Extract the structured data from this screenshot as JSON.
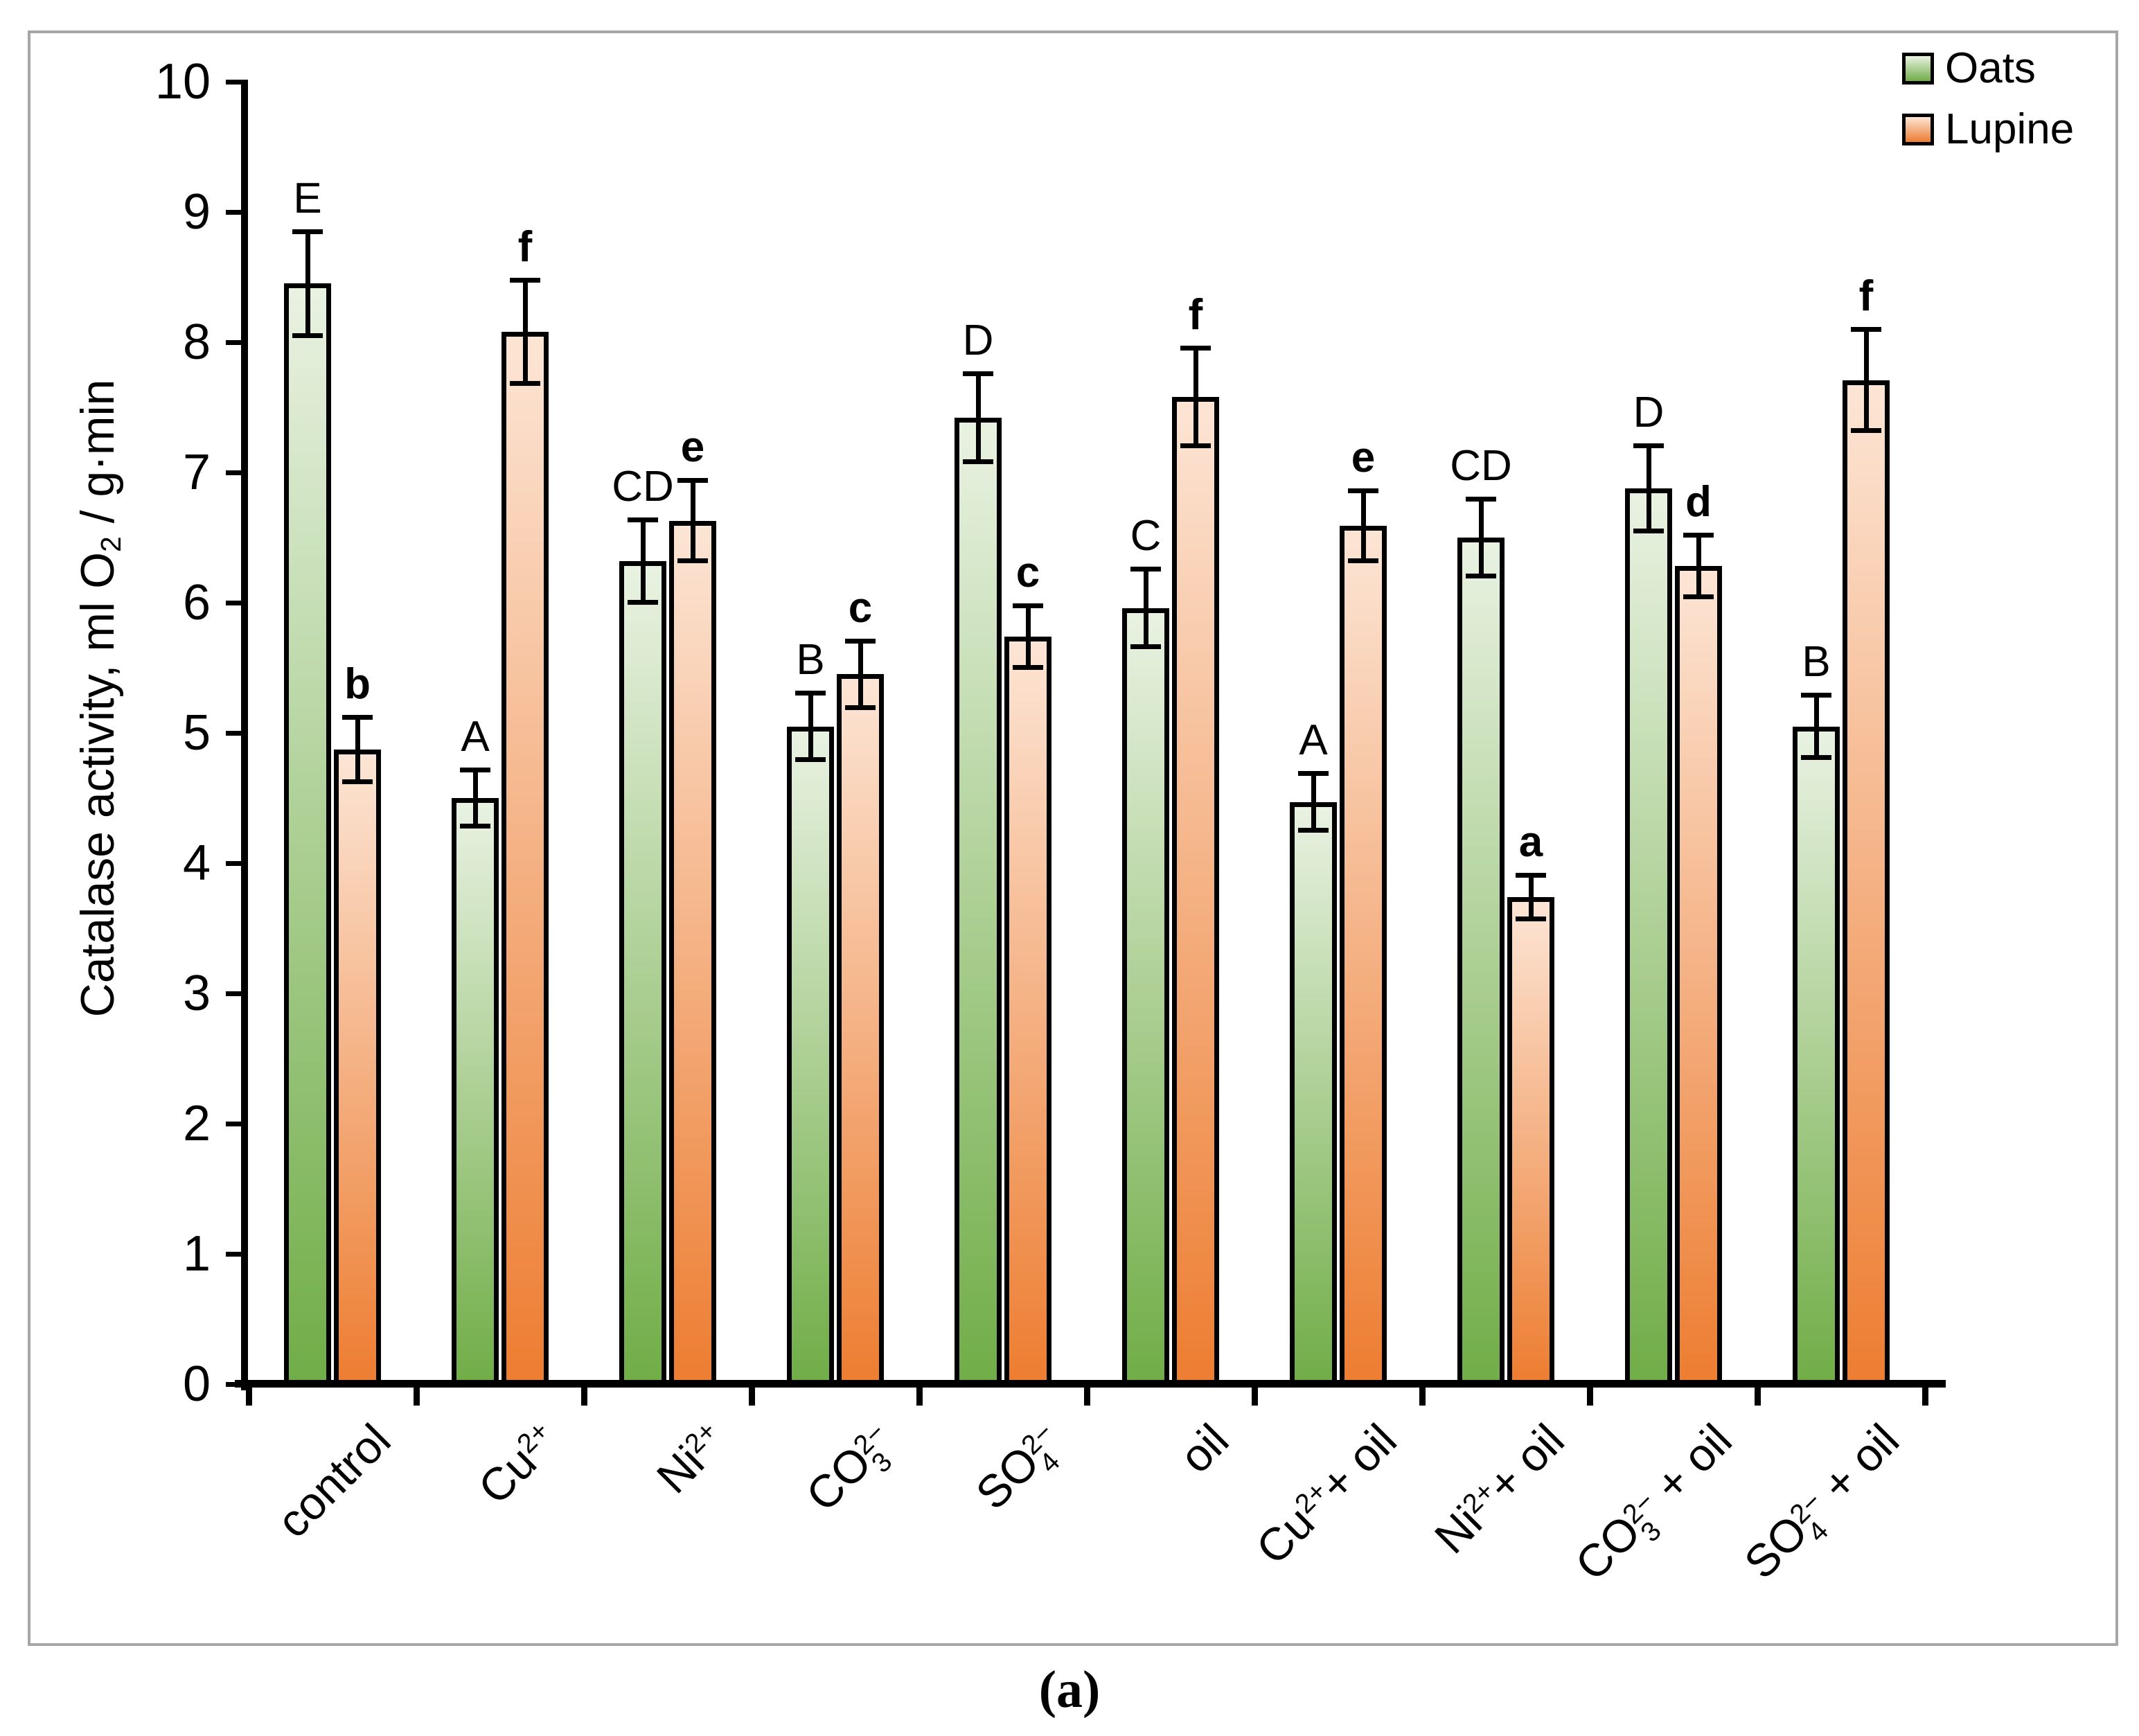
{
  "figure": {
    "frame_color": "#a6a6a6",
    "background": "#ffffff",
    "axis_color": "#000000"
  },
  "chart_data": {
    "type": "bar",
    "title": "",
    "ylabel_plain": "Catalase activity, ml O2 / g·min",
    "ylabel_segments": [
      {
        "t": "Catalase activity,  ml O"
      },
      {
        "t": "2",
        "v": "sub"
      },
      {
        "t": " / g·min"
      }
    ],
    "xlabel": "",
    "ylim": [
      0,
      10
    ],
    "yticks": [
      0,
      1,
      2,
      3,
      4,
      5,
      6,
      7,
      8,
      9,
      10
    ],
    "grid": false,
    "legend_position": "top-right",
    "caption": "(a)",
    "categories_plain": [
      "control",
      "Cu²⁺",
      "Ni²⁺",
      "CO₃²⁻",
      "SO₄²⁻",
      "oil",
      "Cu²⁺+ oil",
      "Ni²⁺+ oil",
      "CO₃²⁻ + oil",
      "SO₄²⁻ + oil"
    ],
    "categories": [
      [
        {
          "t": "control"
        }
      ],
      [
        {
          "t": "Cu"
        },
        {
          "t": "2+",
          "v": "sup"
        }
      ],
      [
        {
          "t": "Ni"
        },
        {
          "t": "2+",
          "v": "sup"
        }
      ],
      [
        {
          "t": "CO"
        },
        {
          "stack": {
            "sup": "2−",
            "sub": "3"
          }
        }
      ],
      [
        {
          "t": "SO"
        },
        {
          "stack": {
            "sup": "2−",
            "sub": "4"
          }
        }
      ],
      [
        {
          "t": "oil"
        }
      ],
      [
        {
          "t": "Cu"
        },
        {
          "t": "2+",
          "v": "sup"
        },
        {
          "t": "+ oil"
        }
      ],
      [
        {
          "t": "Ni"
        },
        {
          "t": "2+",
          "v": "sup"
        },
        {
          "t": "+ oil"
        }
      ],
      [
        {
          "t": "CO"
        },
        {
          "stack": {
            "sup": "2−",
            "sub": "3"
          }
        },
        {
          "t": " + oil"
        }
      ],
      [
        {
          "t": "SO"
        },
        {
          "stack": {
            "sup": "2−",
            "sub": "4"
          }
        },
        {
          "t": " + oil"
        }
      ]
    ],
    "series": [
      {
        "name": "Oats",
        "color_top": "#e9f2e2",
        "color_bottom": "#70ad47",
        "values": [
          8.45,
          4.5,
          6.32,
          5.05,
          7.42,
          5.96,
          4.47,
          6.5,
          6.88,
          5.05
        ],
        "errors": [
          0.4,
          0.22,
          0.32,
          0.26,
          0.34,
          0.3,
          0.22,
          0.3,
          0.33,
          0.24
        ],
        "letters": [
          "E",
          "A",
          "CD",
          "B",
          "D",
          "C",
          "A",
          "CD",
          "D",
          "B"
        ],
        "letters_bold": false
      },
      {
        "name": "Lupine",
        "color_top": "#fce5d5",
        "color_bottom": "#ed7d31",
        "values": [
          4.87,
          8.08,
          6.63,
          5.45,
          5.74,
          7.58,
          6.59,
          3.74,
          6.28,
          7.71
        ],
        "errors": [
          0.25,
          0.4,
          0.31,
          0.26,
          0.24,
          0.38,
          0.27,
          0.17,
          0.24,
          0.39
        ],
        "letters": [
          "b",
          "f",
          "e",
          "c",
          "c",
          "f",
          "e",
          "a",
          "d",
          "f"
        ],
        "letters_bold": true
      }
    ]
  }
}
